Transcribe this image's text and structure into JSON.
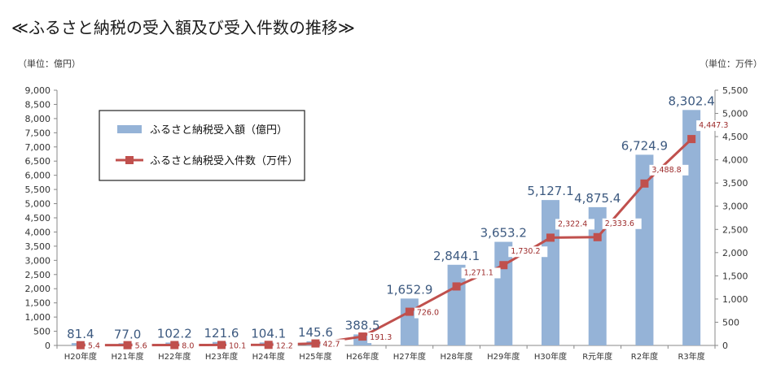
{
  "title": "≪ふるさと納税の受入額及び受入件数の推移≫",
  "unit_left": "（単位：億円）",
  "unit_right": "（単位：万件）",
  "colors": {
    "bar": "#95b3d7",
    "line": "#c0504d",
    "axis": "#888888"
  },
  "chart_data": {
    "type": "bar",
    "categories": [
      "H20年度",
      "H21年度",
      "H22年度",
      "H23年度",
      "H24年度",
      "H25年度",
      "H26年度",
      "H27年度",
      "H28年度",
      "H29年度",
      "H30年度",
      "R元年度",
      "R2年度",
      "R3年度"
    ],
    "series": [
      {
        "name": "ふるさと納税受入額（億円）",
        "type": "bar",
        "axis": "left",
        "values": [
          81.4,
          77.0,
          102.2,
          121.6,
          104.1,
          145.6,
          388.5,
          1652.9,
          2844.1,
          3653.2,
          5127.1,
          4875.4,
          6724.9,
          8302.4
        ],
        "labels": [
          "81.4",
          "77.0",
          "102.2",
          "121.6",
          "104.1",
          "145.6",
          "388.5",
          "1,652.9",
          "2,844.1",
          "3,653.2",
          "5,127.1",
          "4,875.4",
          "6,724.9",
          "8,302.4"
        ]
      },
      {
        "name": "ふるさと納税受入件数（万件）",
        "type": "line",
        "axis": "right",
        "values": [
          5.4,
          5.6,
          8.0,
          10.1,
          12.2,
          42.7,
          191.3,
          726.0,
          1271.1,
          1730.2,
          2322.4,
          2333.6,
          3488.8,
          4447.3
        ],
        "labels": [
          "5.4",
          "5.6",
          "8.0",
          "10.1",
          "12.2",
          "42.7",
          "191.3",
          "726.0",
          "1,271.1",
          "1,730.2",
          "2,322.4",
          "2,333.6",
          "3,488.8",
          "4,447.3"
        ]
      }
    ],
    "y_left": {
      "min": 0,
      "max": 9000,
      "step": 500,
      "ticks": [
        "0",
        "500",
        "1,000",
        "1,500",
        "2,000",
        "2,500",
        "3,000",
        "3,500",
        "4,000",
        "4,500",
        "5,000",
        "5,500",
        "6,000",
        "6,500",
        "7,000",
        "7,500",
        "8,000",
        "8,500",
        "9,000"
      ]
    },
    "y_right": {
      "min": 0,
      "max": 5500,
      "step": 500,
      "ticks": [
        "0",
        "500",
        "1,000",
        "1,500",
        "2,000",
        "2,500",
        "3,000",
        "3,500",
        "4,000",
        "4,500",
        "5,000",
        "5,500"
      ]
    },
    "legend": {
      "placement": "top-left",
      "items": [
        "ふるさと納税受入額（億円）",
        "ふるさと納税受入件数（万件）"
      ]
    },
    "grid": false
  }
}
